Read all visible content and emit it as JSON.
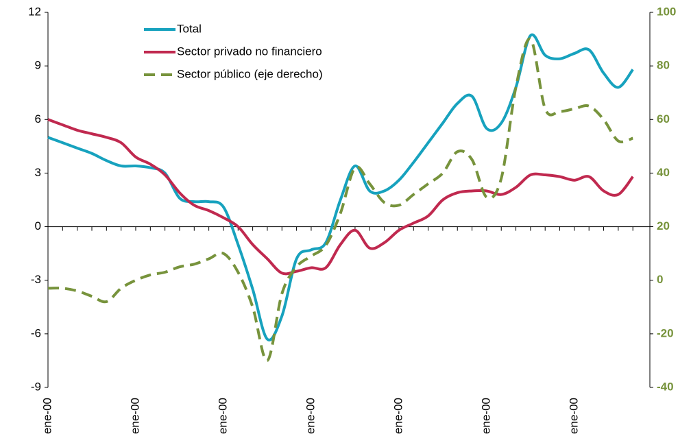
{
  "chart_data": {
    "type": "line",
    "categories": [
      "ene-00",
      null,
      null,
      null,
      null,
      null,
      "ene-00",
      null,
      null,
      null,
      null,
      null,
      "ene-00",
      null,
      null,
      null,
      null,
      null,
      "ene-00",
      null,
      null,
      null,
      null,
      null,
      "ene-00",
      null,
      null,
      null,
      null,
      null,
      "ene-00",
      null,
      null,
      null,
      null,
      null,
      "ene-00",
      null,
      null,
      null,
      null
    ],
    "series": [
      {
        "name": "Total",
        "color": "#17a2be",
        "values": [
          5.0,
          4.7,
          4.4,
          4.1,
          3.7,
          3.4,
          3.4,
          3.3,
          3.0,
          1.6,
          1.4,
          1.4,
          1.1,
          -1.0,
          -3.5,
          -6.3,
          -5.0,
          -1.8,
          -1.3,
          -0.9,
          1.5,
          3.4,
          2.0,
          2.0,
          2.6,
          3.6,
          4.7,
          5.8,
          6.9,
          7.3,
          5.5,
          5.8,
          7.8,
          10.7,
          9.6,
          9.4,
          9.7,
          9.9,
          8.6,
          7.8,
          8.8
        ]
      },
      {
        "name": "Sector privado no financiero",
        "color": "#c0294f",
        "values": [
          6.0,
          5.7,
          5.4,
          5.2,
          5.0,
          4.7,
          3.9,
          3.5,
          2.9,
          1.9,
          1.2,
          0.9,
          0.5,
          0.0,
          -1.0,
          -1.8,
          -2.6,
          -2.5,
          -2.3,
          -2.3,
          -1.0,
          -0.2,
          -1.2,
          -0.9,
          -0.2,
          0.2,
          0.6,
          1.5,
          1.9,
          2.0,
          2.0,
          1.8,
          2.2,
          2.9,
          2.9,
          2.8,
          2.6,
          2.8,
          2.0,
          1.8,
          2.8
        ]
      },
      {
        "name": "Sector público (eje derecho)",
        "color": "#77933c",
        "axis": "y2",
        "dashed": true,
        "values": [
          -3,
          -3,
          -4,
          -6,
          -8,
          -3,
          0,
          2,
          3,
          5,
          6,
          8,
          10,
          3,
          -10,
          -30,
          -5,
          5,
          9,
          13,
          25,
          42,
          36,
          29,
          28,
          32,
          36,
          40,
          48,
          45,
          31,
          38,
          72,
          90,
          64,
          63,
          64,
          65,
          60,
          52,
          53
        ]
      }
    ],
    "ylim": [
      -9,
      12
    ],
    "yticks": [
      -9,
      -6,
      -3,
      0,
      3,
      6,
      9,
      12
    ],
    "y2lim": [
      -40,
      100
    ],
    "y2ticks": [
      -40,
      -20,
      0,
      20,
      40,
      60,
      80,
      100
    ]
  }
}
